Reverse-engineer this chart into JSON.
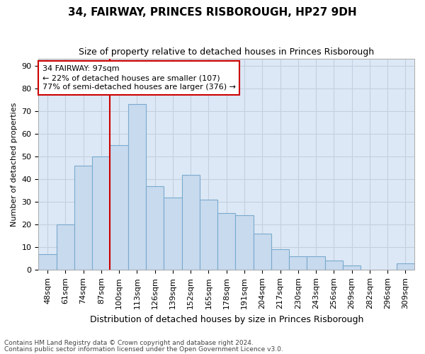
{
  "title": "34, FAIRWAY, PRINCES RISBOROUGH, HP27 9DH",
  "subtitle": "Size of property relative to detached houses in Princes Risborough",
  "xlabel": "Distribution of detached houses by size in Princes Risborough",
  "ylabel": "Number of detached properties",
  "categories": [
    "48sqm",
    "61sqm",
    "74sqm",
    "87sqm",
    "100sqm",
    "113sqm",
    "126sqm",
    "139sqm",
    "152sqm",
    "165sqm",
    "178sqm",
    "191sqm",
    "204sqm",
    "217sqm",
    "230sqm",
    "243sqm",
    "256sqm",
    "269sqm",
    "282sqm",
    "296sqm",
    "309sqm"
  ],
  "bar_heights": [
    7,
    20,
    46,
    50,
    55,
    73,
    37,
    32,
    42,
    31,
    25,
    24,
    16,
    9,
    6,
    6,
    4,
    2,
    0,
    0,
    3
  ],
  "bar_color": "#c8daee",
  "bar_edge_color": "#7aaace",
  "vline_color": "#cc0000",
  "annotation_text": "34 FAIRWAY: 97sqm\n← 22% of detached houses are smaller (107)\n77% of semi-detached houses are larger (376) →",
  "annotation_box_facecolor": "#ffffff",
  "annotation_box_edgecolor": "#cc0000",
  "ylim": [
    0,
    93
  ],
  "yticks": [
    0,
    10,
    20,
    30,
    40,
    50,
    60,
    70,
    80,
    90
  ],
  "grid_color": "#c5d0e0",
  "plot_bg_color": "#dce8f5",
  "fig_bg_color": "#ffffff",
  "title_fontsize": 11,
  "subtitle_fontsize": 9,
  "ylabel_fontsize": 8,
  "xlabel_fontsize": 9,
  "tick_fontsize": 8,
  "annotation_fontsize": 8,
  "footnote1": "Contains HM Land Registry data © Crown copyright and database right 2024.",
  "footnote2": "Contains public sector information licensed under the Open Government Licence v3.0.",
  "footnote_fontsize": 6.5
}
